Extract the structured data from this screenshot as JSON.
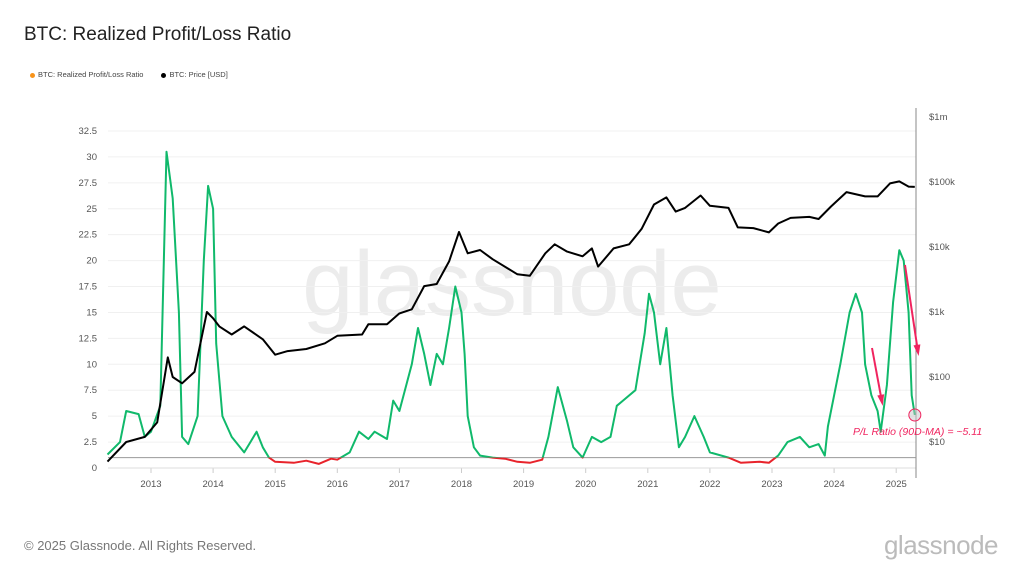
{
  "title": "BTC: Realized Profit/Loss Ratio",
  "footer": "© 2025 Glassnode. All Rights Reserved.",
  "brand": "glassnode",
  "watermark": "glassnode",
  "chart_data": {
    "type": "line",
    "title": "BTC: Realized Profit/Loss Ratio",
    "legend": {
      "placement": "top-left",
      "entries": [
        {
          "name": "BTC: Realized Profit/Loss Ratio",
          "color": "#f7931a"
        },
        {
          "name": "BTC: Price [USD]",
          "color": "#000000"
        }
      ]
    },
    "x_ticks": [
      "2013",
      "2014",
      "2015",
      "2016",
      "2017",
      "2018",
      "2019",
      "2020",
      "2021",
      "2022",
      "2023",
      "2024",
      "2025"
    ],
    "y_left": {
      "ticks": [
        "0",
        "2.5",
        "5",
        "7.5",
        "10",
        "12.5",
        "15",
        "17.5",
        "20",
        "22.5",
        "25",
        "27.5",
        "30",
        "32.5"
      ],
      "range": [
        0,
        32.5
      ]
    },
    "y_right": {
      "scale": "log",
      "ticks": [
        "$10",
        "$100",
        "$1k",
        "$10k",
        "$100k",
        "$1m"
      ]
    },
    "grid": true,
    "colors": {
      "profit": "#10b96b",
      "loss": "#e8232b",
      "price": "#000000",
      "annotation": "#f0245f",
      "baseline": "#999999"
    },
    "baseline_value": 1,
    "series": [
      {
        "name": "BTC: Realized Profit/Loss Ratio",
        "axis": "left",
        "points": [
          [
            2012.3,
            1.3
          ],
          [
            2012.5,
            2.5
          ],
          [
            2012.6,
            5.5
          ],
          [
            2012.8,
            5.2
          ],
          [
            2012.9,
            3
          ],
          [
            2013.0,
            3.5
          ],
          [
            2013.15,
            6
          ],
          [
            2013.25,
            30.5
          ],
          [
            2013.35,
            26
          ],
          [
            2013.45,
            15
          ],
          [
            2013.5,
            3
          ],
          [
            2013.6,
            2.3
          ],
          [
            2013.75,
            5
          ],
          [
            2013.85,
            20
          ],
          [
            2013.92,
            27.2
          ],
          [
            2014.0,
            25
          ],
          [
            2014.05,
            12
          ],
          [
            2014.15,
            5
          ],
          [
            2014.3,
            3
          ],
          [
            2014.5,
            1.5
          ],
          [
            2014.6,
            2.5
          ],
          [
            2014.7,
            3.5
          ],
          [
            2014.8,
            2
          ],
          [
            2014.9,
            1
          ],
          [
            2015.0,
            0.6
          ],
          [
            2015.3,
            0.5
          ],
          [
            2015.5,
            0.7
          ],
          [
            2015.7,
            0.4
          ],
          [
            2015.9,
            0.9
          ],
          [
            2016.0,
            0.8
          ],
          [
            2016.2,
            1.5
          ],
          [
            2016.35,
            3.5
          ],
          [
            2016.5,
            2.8
          ],
          [
            2016.6,
            3.5
          ],
          [
            2016.8,
            2.8
          ],
          [
            2016.9,
            6.5
          ],
          [
            2017.0,
            5.5
          ],
          [
            2017.2,
            10
          ],
          [
            2017.3,
            13.5
          ],
          [
            2017.4,
            11
          ],
          [
            2017.5,
            8
          ],
          [
            2017.6,
            11
          ],
          [
            2017.7,
            10
          ],
          [
            2017.8,
            13.5
          ],
          [
            2017.9,
            17.5
          ],
          [
            2018.0,
            15
          ],
          [
            2018.05,
            11
          ],
          [
            2018.1,
            5
          ],
          [
            2018.2,
            2
          ],
          [
            2018.3,
            1.2
          ],
          [
            2018.5,
            1
          ],
          [
            2018.7,
            0.9
          ],
          [
            2018.9,
            0.6
          ],
          [
            2019.1,
            0.5
          ],
          [
            2019.3,
            0.8
          ],
          [
            2019.4,
            3
          ],
          [
            2019.55,
            7.8
          ],
          [
            2019.7,
            4.5
          ],
          [
            2019.8,
            2
          ],
          [
            2019.95,
            1
          ],
          [
            2020.1,
            3
          ],
          [
            2020.25,
            2.5
          ],
          [
            2020.4,
            3
          ],
          [
            2020.5,
            6
          ],
          [
            2020.6,
            6.5
          ],
          [
            2020.8,
            7.5
          ],
          [
            2020.95,
            13
          ],
          [
            2021.02,
            16.8
          ],
          [
            2021.1,
            15
          ],
          [
            2021.2,
            10
          ],
          [
            2021.3,
            13.5
          ],
          [
            2021.4,
            7
          ],
          [
            2021.5,
            2
          ],
          [
            2021.6,
            3
          ],
          [
            2021.75,
            5
          ],
          [
            2021.9,
            3
          ],
          [
            2022.0,
            1.5
          ],
          [
            2022.3,
            1
          ],
          [
            2022.5,
            0.5
          ],
          [
            2022.8,
            0.6
          ],
          [
            2022.95,
            0.5
          ],
          [
            2023.1,
            1.2
          ],
          [
            2023.25,
            2.5
          ],
          [
            2023.45,
            3
          ],
          [
            2023.6,
            2
          ],
          [
            2023.75,
            2.3
          ],
          [
            2023.85,
            1.2
          ],
          [
            2023.9,
            4
          ],
          [
            2024.0,
            7
          ],
          [
            2024.1,
            10
          ],
          [
            2024.25,
            15
          ],
          [
            2024.35,
            16.8
          ],
          [
            2024.45,
            15
          ],
          [
            2024.5,
            10
          ],
          [
            2024.6,
            7
          ],
          [
            2024.7,
            5.5
          ],
          [
            2024.75,
            3.5
          ],
          [
            2024.85,
            8
          ],
          [
            2024.95,
            16
          ],
          [
            2025.05,
            21
          ],
          [
            2025.12,
            20
          ],
          [
            2025.2,
            15
          ],
          [
            2025.25,
            7
          ],
          [
            2025.3,
            5.11
          ]
        ]
      },
      {
        "name": "BTC: Price [USD]",
        "axis": "right",
        "points": [
          [
            2012.3,
            5
          ],
          [
            2012.6,
            10
          ],
          [
            2012.9,
            12
          ],
          [
            2013.1,
            20
          ],
          [
            2013.27,
            200
          ],
          [
            2013.35,
            100
          ],
          [
            2013.5,
            80
          ],
          [
            2013.7,
            120
          ],
          [
            2013.9,
            1000
          ],
          [
            2014.0,
            800
          ],
          [
            2014.1,
            600
          ],
          [
            2014.3,
            450
          ],
          [
            2014.5,
            600
          ],
          [
            2014.8,
            380
          ],
          [
            2015.0,
            220
          ],
          [
            2015.2,
            250
          ],
          [
            2015.5,
            270
          ],
          [
            2015.8,
            330
          ],
          [
            2016.0,
            430
          ],
          [
            2016.4,
            450
          ],
          [
            2016.5,
            650
          ],
          [
            2016.8,
            650
          ],
          [
            2017.0,
            950
          ],
          [
            2017.2,
            1100
          ],
          [
            2017.4,
            2500
          ],
          [
            2017.6,
            2700
          ],
          [
            2017.8,
            6000
          ],
          [
            2017.96,
            17000
          ],
          [
            2018.1,
            8000
          ],
          [
            2018.3,
            9000
          ],
          [
            2018.5,
            6500
          ],
          [
            2018.9,
            3800
          ],
          [
            2019.1,
            3600
          ],
          [
            2019.35,
            8000
          ],
          [
            2019.5,
            11000
          ],
          [
            2019.7,
            8500
          ],
          [
            2019.95,
            7200
          ],
          [
            2020.1,
            9500
          ],
          [
            2020.2,
            5000
          ],
          [
            2020.45,
            9500
          ],
          [
            2020.7,
            11000
          ],
          [
            2020.9,
            19000
          ],
          [
            2021.1,
            45000
          ],
          [
            2021.3,
            58000
          ],
          [
            2021.45,
            35000
          ],
          [
            2021.6,
            40000
          ],
          [
            2021.85,
            62000
          ],
          [
            2022.0,
            43000
          ],
          [
            2022.3,
            40000
          ],
          [
            2022.45,
            20000
          ],
          [
            2022.7,
            19500
          ],
          [
            2022.95,
            16800
          ],
          [
            2023.1,
            23000
          ],
          [
            2023.3,
            28000
          ],
          [
            2023.6,
            29000
          ],
          [
            2023.75,
            27000
          ],
          [
            2023.95,
            42000
          ],
          [
            2024.2,
            70000
          ],
          [
            2024.5,
            60000
          ],
          [
            2024.7,
            60000
          ],
          [
            2024.9,
            95000
          ],
          [
            2025.05,
            102000
          ],
          [
            2025.2,
            85000
          ],
          [
            2025.3,
            84000
          ]
        ]
      }
    ],
    "annotations": [
      {
        "text": "P/L Ratio (90D-MA) = ~5.11"
      }
    ]
  }
}
